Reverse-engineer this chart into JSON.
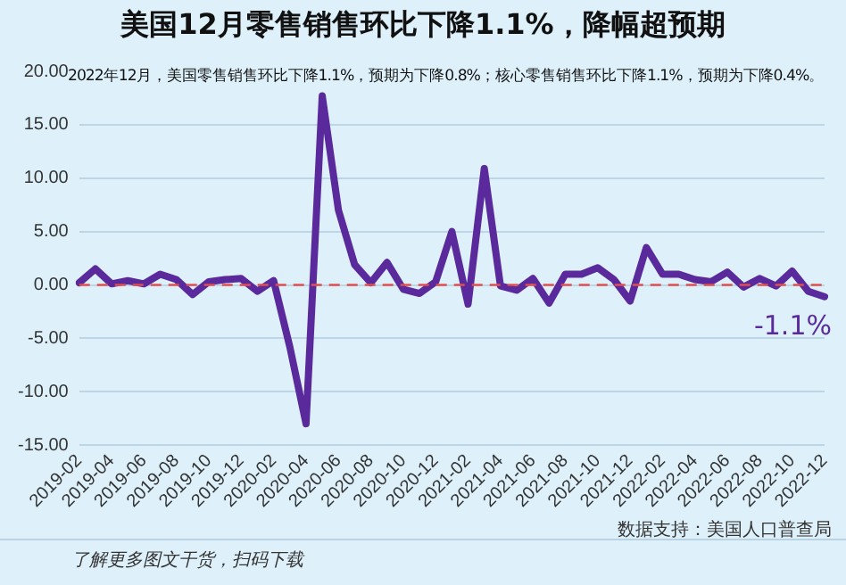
{
  "chart_data": {
    "type": "line",
    "title": "美国12月零售销售环比下降1.1%，降幅超预期",
    "subtitle": "2022年12月，美国零售销售环比下降1.1%，预期为下降0.8%；核心零售销售环比下降1.1%，预期为下降0.4%。",
    "categories": [
      "2019-02",
      null,
      "2019-04",
      null,
      "2019-06",
      null,
      "2019-08",
      null,
      "2019-10",
      null,
      "2019-12",
      null,
      "2020-02",
      null,
      "2020-04",
      null,
      "2020-06",
      null,
      "2020-08",
      null,
      "2020-10",
      null,
      "2020-12",
      null,
      "2021-02",
      null,
      "2021-04",
      null,
      "2021-06",
      null,
      "2021-08",
      null,
      "2021-10",
      null,
      "2021-12",
      null,
      "2022-02",
      null,
      "2022-04",
      null,
      "2022-06",
      null,
      "2022-08",
      null,
      "2022-10",
      null,
      "2022-12"
    ],
    "series": [
      {
        "color": "#5a2a9c",
        "values": [
          0.2,
          1.5,
          0.1,
          0.4,
          0.1,
          1.0,
          0.5,
          -0.9,
          0.3,
          0.5,
          0.6,
          -0.6,
          0.4,
          -5.8,
          -13.0,
          17.7,
          7.0,
          1.9,
          0.2,
          2.1,
          -0.4,
          -0.8,
          0.3,
          5.0,
          -1.8,
          10.9,
          -0.1,
          -0.5,
          0.6,
          -1.7,
          1.0,
          1.0,
          1.6,
          0.5,
          -1.5,
          3.5,
          1.0,
          1.0,
          0.5,
          0.3,
          1.2,
          -0.2,
          0.6,
          -0.1,
          1.3,
          -0.6,
          -1.1
        ]
      }
    ],
    "ylim": [
      -15,
      20
    ],
    "yticks": [
      {
        "value": -15,
        "label": "-15.00"
      },
      {
        "value": -10,
        "label": "-10.00"
      },
      {
        "value": -5,
        "label": "-5.00"
      },
      {
        "value": 0,
        "label": "0.00"
      },
      {
        "value": 5,
        "label": "5.00"
      },
      {
        "value": 10,
        "label": "10.00"
      },
      {
        "value": 15,
        "label": "15.00"
      },
      {
        "value": 20,
        "label": "20.00"
      }
    ],
    "grid": "y",
    "legend": false,
    "marker": "none",
    "line_style": "solid",
    "ref_lines": [
      {
        "axis": "y",
        "value": 0,
        "color": "#e05050",
        "line_style": "dashed"
      }
    ],
    "annotations": [
      {
        "text": "-1.1%",
        "x": "2022-12",
        "y": -1.1
      },
      "数据支持：美国人口普查局",
      "了解更多图文干货，扫码下载"
    ]
  }
}
